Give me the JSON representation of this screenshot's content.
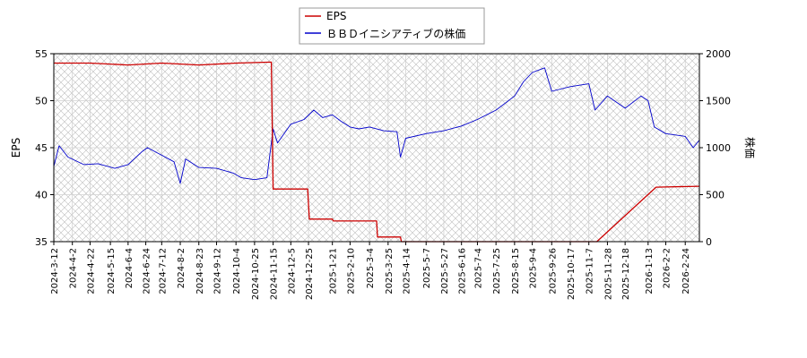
{
  "chart_data": {
    "type": "line",
    "title": "",
    "xlabel": "",
    "ylabel_left": "EPS",
    "ylabel_right": "株価",
    "legend_position": "top-center",
    "grid": true,
    "x_start": "2024-03-12",
    "x_end": "2026-03-12",
    "x_ticks": [
      "2024-3-12",
      "2024-4-2",
      "2024-4-22",
      "2024-5-15",
      "2024-6-4",
      "2024-6-24",
      "2024-7-12",
      "2024-8-2",
      "2024-8-23",
      "2024-9-12",
      "2024-10-4",
      "2024-10-25",
      "2024-11-15",
      "2024-12-5",
      "2024-12-25",
      "2025-1-21",
      "2025-2-10",
      "2025-3-4",
      "2025-3-25",
      "2025-4-14",
      "2025-5-7",
      "2025-5-27",
      "2025-6-16",
      "2025-7-4",
      "2025-7-25",
      "2025-8-15",
      "2025-9-4",
      "2025-9-26",
      "2025-10-17",
      "2025-11-7",
      "2025-11-28",
      "2025-12-18",
      "2026-1-13",
      "2026-2-2",
      "2026-2-24"
    ],
    "ylim_left": [
      35,
      55
    ],
    "yticks_left": [
      35,
      40,
      45,
      50,
      55
    ],
    "ylim_right": [
      0,
      2000
    ],
    "yticks_right": [
      0,
      500,
      1000,
      1500,
      2000
    ],
    "series": [
      {
        "name": "EPS",
        "axis": "left",
        "color": "#cc0000",
        "points": [
          [
            "2024-03-12",
            54.0
          ],
          [
            "2024-04-22",
            54.0
          ],
          [
            "2024-06-04",
            53.8
          ],
          [
            "2024-07-12",
            54.0
          ],
          [
            "2024-08-23",
            53.8
          ],
          [
            "2024-10-04",
            54.0
          ],
          [
            "2024-11-13",
            54.1
          ],
          [
            "2024-11-15",
            40.6
          ],
          [
            "2024-12-24",
            40.6
          ],
          [
            "2024-12-26",
            37.4
          ],
          [
            "2025-01-21",
            37.4
          ],
          [
            "2025-01-22",
            37.2
          ],
          [
            "2025-03-12",
            37.2
          ],
          [
            "2025-03-13",
            35.5
          ],
          [
            "2025-04-08",
            35.5
          ],
          [
            "2025-04-09",
            35.0
          ],
          [
            "2025-11-16",
            35.0
          ],
          [
            "2026-01-22",
            40.8
          ],
          [
            "2026-03-12",
            40.9
          ]
        ]
      },
      {
        "name": "ＢＢＤイニシアティブの株価",
        "axis": "right",
        "color": "#0000cc",
        "points": [
          [
            "2024-03-12",
            800
          ],
          [
            "2024-03-18",
            1020
          ],
          [
            "2024-03-28",
            900
          ],
          [
            "2024-04-15",
            820
          ],
          [
            "2024-05-01",
            830
          ],
          [
            "2024-05-20",
            780
          ],
          [
            "2024-06-04",
            820
          ],
          [
            "2024-06-20",
            960
          ],
          [
            "2024-06-26",
            1000
          ],
          [
            "2024-07-12",
            920
          ],
          [
            "2024-07-26",
            850
          ],
          [
            "2024-08-02",
            620
          ],
          [
            "2024-08-08",
            880
          ],
          [
            "2024-08-23",
            790
          ],
          [
            "2024-09-12",
            780
          ],
          [
            "2024-10-01",
            730
          ],
          [
            "2024-10-10",
            680
          ],
          [
            "2024-10-25",
            660
          ],
          [
            "2024-11-08",
            680
          ],
          [
            "2024-11-15",
            1200
          ],
          [
            "2024-11-20",
            1050
          ],
          [
            "2024-12-05",
            1250
          ],
          [
            "2024-12-20",
            1300
          ],
          [
            "2024-12-31",
            1400
          ],
          [
            "2025-01-10",
            1320
          ],
          [
            "2025-01-21",
            1350
          ],
          [
            "2025-01-31",
            1280
          ],
          [
            "2025-02-10",
            1220
          ],
          [
            "2025-02-20",
            1200
          ],
          [
            "2025-03-04",
            1220
          ],
          [
            "2025-03-20",
            1180
          ],
          [
            "2025-04-04",
            1170
          ],
          [
            "2025-04-08",
            900
          ],
          [
            "2025-04-14",
            1100
          ],
          [
            "2025-05-07",
            1150
          ],
          [
            "2025-05-27",
            1180
          ],
          [
            "2025-06-16",
            1230
          ],
          [
            "2025-07-04",
            1300
          ],
          [
            "2025-07-25",
            1400
          ],
          [
            "2025-08-15",
            1550
          ],
          [
            "2025-08-25",
            1700
          ],
          [
            "2025-09-04",
            1800
          ],
          [
            "2025-09-18",
            1850
          ],
          [
            "2025-09-26",
            1600
          ],
          [
            "2025-10-17",
            1650
          ],
          [
            "2025-11-07",
            1680
          ],
          [
            "2025-11-14",
            1400
          ],
          [
            "2025-11-28",
            1550
          ],
          [
            "2025-12-18",
            1420
          ],
          [
            "2026-01-05",
            1550
          ],
          [
            "2026-01-13",
            1500
          ],
          [
            "2026-01-20",
            1220
          ],
          [
            "2026-02-02",
            1150
          ],
          [
            "2026-02-24",
            1120
          ],
          [
            "2026-03-05",
            1000
          ],
          [
            "2026-03-12",
            1080
          ]
        ]
      }
    ]
  }
}
